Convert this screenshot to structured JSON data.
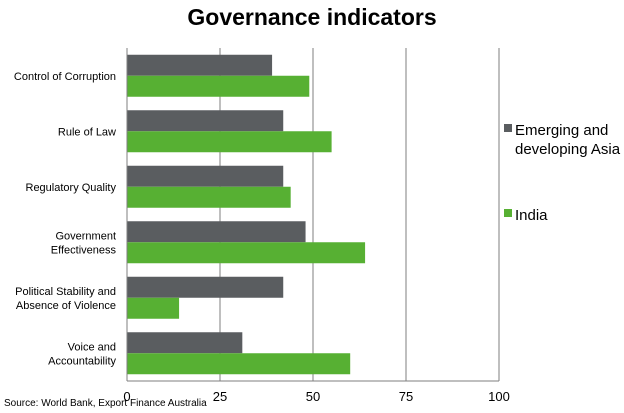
{
  "title": "Governance indicators",
  "source": "Source: World Bank, Export Finance Australia",
  "colors": {
    "emerging_asia": "#5a5d60",
    "india": "#57b033",
    "gridline": "#7f7f7f"
  },
  "chart_data": {
    "type": "bar",
    "orientation": "horizontal",
    "title": "Governance indicators",
    "categories": [
      [
        "Control of Corruption"
      ],
      [
        "Rule of Law"
      ],
      [
        "Regulatory Quality"
      ],
      [
        "Government",
        "Effectiveness"
      ],
      [
        "Political Stability and",
        "Absence of Violence"
      ],
      [
        "Voice and",
        "Accountability"
      ]
    ],
    "series": [
      {
        "name": "Emerging and developing Asia",
        "legend_lines": [
          "Emerging and",
          "developing Asia"
        ],
        "color": "#5a5d60",
        "values": [
          39,
          42,
          42,
          48,
          42,
          31
        ]
      },
      {
        "name": "India",
        "legend_lines": [
          "India"
        ],
        "color": "#57b033",
        "values": [
          49,
          55,
          44,
          64,
          14,
          60
        ]
      }
    ],
    "xlim": [
      0,
      100
    ],
    "xticks": [
      0,
      25,
      50,
      75,
      100
    ],
    "grid": true,
    "legend_position": "right"
  }
}
